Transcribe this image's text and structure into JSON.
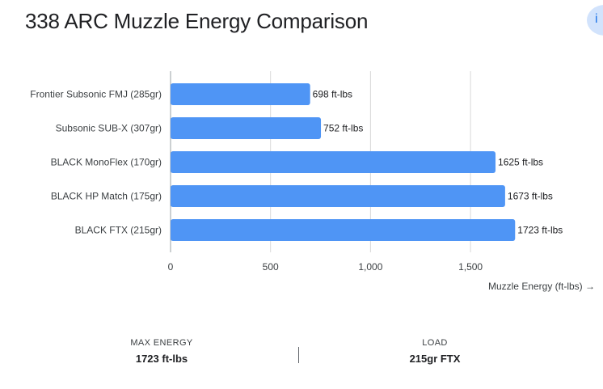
{
  "header": {
    "title": "338 ARC Muzzle Energy Comparison",
    "corner_icon": "info-icon"
  },
  "chart_data": {
    "type": "bar",
    "orientation": "horizontal",
    "categories": [
      "Frontier Subsonic FMJ (285gr)",
      "Subsonic SUB-X (307gr)",
      "BLACK MonoFlex (170gr)",
      "BLACK HP Match (175gr)",
      "BLACK FTX (215gr)"
    ],
    "values": [
      698,
      752,
      1625,
      1673,
      1723
    ],
    "data_labels": [
      "698 ft-lbs",
      "752 ft-lbs",
      "1625 ft-lbs",
      "1673 ft-lbs",
      "1723 ft-lbs"
    ],
    "x_ticks": [
      0,
      500,
      1000,
      1500
    ],
    "x_tick_labels": [
      "0",
      "500",
      "1,000",
      "1,500"
    ],
    "xlim": [
      0,
      1900
    ],
    "xlabel": "Muzzle Energy (ft-lbs) →",
    "grid": true,
    "bar_color": "#4f95f5",
    "grid_color": "#d9d9d9"
  },
  "footer": {
    "max_label": "MAX ENERGY",
    "max_value": "1723 ft-lbs",
    "load_label": "LOAD",
    "load_value": "215gr FTX"
  }
}
